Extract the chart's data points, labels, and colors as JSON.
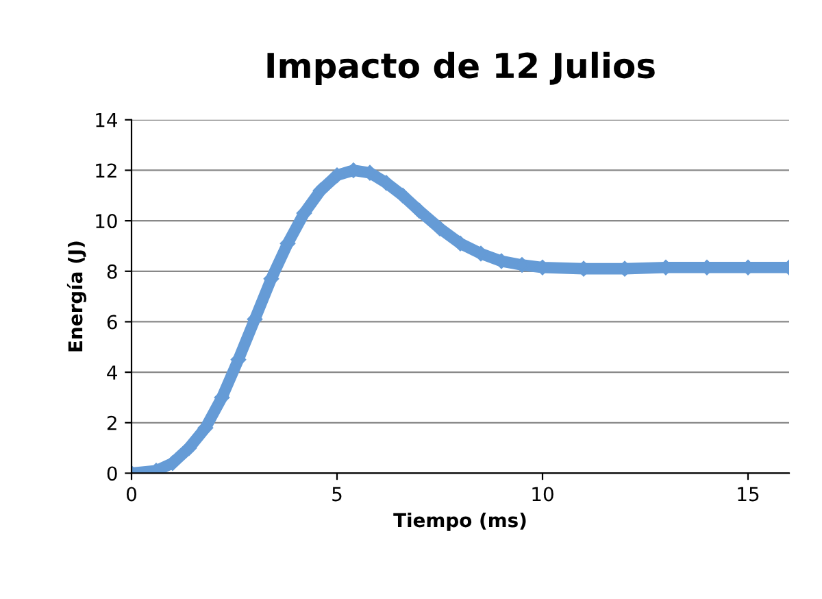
{
  "chart_data": {
    "type": "line",
    "title": "Impacto de 12 Julios",
    "xlabel": "Tiempo (ms)",
    "ylabel": "Energía (J)",
    "x": [
      0,
      0.6,
      1.0,
      1.4,
      1.8,
      2.2,
      2.6,
      3.0,
      3.4,
      3.8,
      4.2,
      4.6,
      5.0,
      5.4,
      5.8,
      6.2,
      6.6,
      7.0,
      7.5,
      8.0,
      8.5,
      9.0,
      9.5,
      10,
      11,
      12,
      13,
      14,
      15,
      16
    ],
    "series": [
      {
        "color": "#659bd6",
        "values": [
          0,
          0.1,
          0.4,
          1.0,
          1.8,
          3.0,
          4.5,
          6.1,
          7.7,
          9.1,
          10.3,
          11.2,
          11.8,
          12.0,
          11.9,
          11.5,
          11.0,
          10.4,
          9.7,
          9.1,
          8.7,
          8.4,
          8.25,
          8.15,
          8.1,
          8.1,
          8.15,
          8.15,
          8.15,
          8.15
        ]
      }
    ],
    "xlim": [
      0,
      16
    ],
    "xticks": [
      0,
      5,
      10,
      15
    ],
    "ylim": [
      0,
      14
    ],
    "yticks": [
      0,
      2,
      4,
      6,
      8,
      10,
      12,
      14
    ],
    "grid": "y",
    "marker": "diamond",
    "line_style": "solid",
    "legend": false
  }
}
